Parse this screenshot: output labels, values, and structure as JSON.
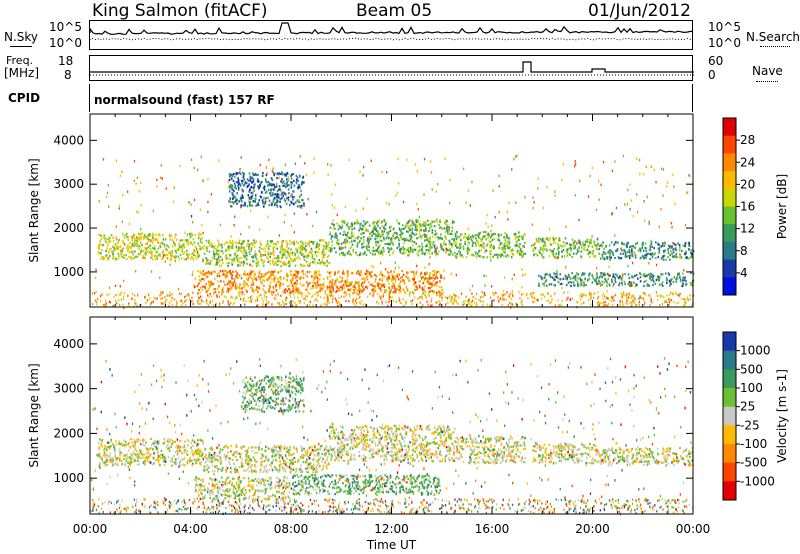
{
  "header": {
    "station": "King Salmon (fitACF)",
    "beam": "Beam 05",
    "date": "01/Jun/2012"
  },
  "strip": {
    "nsky_label": "N.Sky",
    "nsearch_label": "N.Search",
    "noise_ticks": [
      "10^5",
      "10^0"
    ],
    "freq_label": "Freq.",
    "freq_unit": "[MHz]",
    "freq_ticks": [
      "18",
      "8"
    ],
    "nave_label": "Nave",
    "nave_ticks": [
      "60",
      "0"
    ],
    "cpid_label": "CPID",
    "cpid_value": "normalsound (fast) 157 RF"
  },
  "chart_data": [
    {
      "type": "heatmap",
      "name": "power",
      "ylabel": "Slant Range [km]",
      "yticks": [
        1000,
        2000,
        3000,
        4000
      ],
      "ylim": [
        200,
        4600
      ],
      "xlim": [
        0,
        24
      ],
      "colorbar": {
        "label": "Power [dB]",
        "ticks": [
          "28",
          "24",
          "20",
          "16",
          "12",
          "8",
          "4"
        ],
        "colors": [
          "#e00000",
          "#ff4400",
          "#ff8800",
          "#ffbb00",
          "#c8d800",
          "#6ac030",
          "#3a9a5a",
          "#2a7a8a",
          "#1a3aaa",
          "#0010e0"
        ]
      },
      "bands": [
        {
          "t0": 0.3,
          "t1": 4.5,
          "r0": 1300,
          "r1": 1900,
          "level": 0.55
        },
        {
          "t0": 4.5,
          "t1": 9.5,
          "r0": 1150,
          "r1": 1750,
          "level": 0.5
        },
        {
          "t0": 9.5,
          "t1": 14.5,
          "r0": 1400,
          "r1": 2200,
          "level": 0.4
        },
        {
          "t0": 14.5,
          "t1": 17.3,
          "r0": 1350,
          "r1": 1950,
          "level": 0.45
        },
        {
          "t0": 17.6,
          "t1": 20.2,
          "r0": 1350,
          "r1": 1800,
          "level": 0.45
        },
        {
          "t0": 20.2,
          "t1": 24,
          "r0": 1300,
          "r1": 1700,
          "level": 0.3
        },
        {
          "t0": 4.1,
          "t1": 14.0,
          "r0": 550,
          "r1": 1050,
          "level": 0.75
        },
        {
          "t0": 5.5,
          "t1": 8.5,
          "r0": 2500,
          "r1": 3300,
          "level": 0.2
        },
        {
          "t0": 17.8,
          "t1": 24,
          "r0": 700,
          "r1": 1000,
          "level": 0.3
        }
      ]
    },
    {
      "type": "heatmap",
      "name": "velocity",
      "ylabel": "Slant Range [km]",
      "yticks": [
        1000,
        2000,
        3000,
        4000
      ],
      "ylim": [
        200,
        4600
      ],
      "xlim": [
        0,
        24
      ],
      "xticks": [
        "00:00",
        "04:00",
        "08:00",
        "12:00",
        "16:00",
        "20:00",
        "00:00"
      ],
      "xlabel": "Time UT",
      "colorbar": {
        "label": "Velocity [m s-1]",
        "ticks": [
          "1000",
          "500",
          "100",
          "25",
          "-25",
          "-100",
          "-500",
          "-1000"
        ],
        "colors": [
          "#1a3aaa",
          "#2a7a8a",
          "#3a9a5a",
          "#6ac030",
          "#c8c8c8",
          "#ffbb00",
          "#ff8800",
          "#ff4400",
          "#e00000"
        ]
      },
      "bands": [
        {
          "t0": 0.3,
          "t1": 4.5,
          "r0": 1300,
          "r1": 1900,
          "level": 0.5
        },
        {
          "t0": 4.5,
          "t1": 9.5,
          "r0": 1150,
          "r1": 1750,
          "level": 0.5
        },
        {
          "t0": 9.5,
          "t1": 14.5,
          "r0": 1400,
          "r1": 2200,
          "level": 0.5
        },
        {
          "t0": 14.5,
          "t1": 17.3,
          "r0": 1350,
          "r1": 1950,
          "level": 0.5
        },
        {
          "t0": 17.6,
          "t1": 20.2,
          "r0": 1350,
          "r1": 1800,
          "level": 0.5
        },
        {
          "t0": 20.2,
          "t1": 24,
          "r0": 1300,
          "r1": 1700,
          "level": 0.5
        },
        {
          "t0": 4.1,
          "t1": 8.0,
          "r0": 550,
          "r1": 1050,
          "level": 0.5
        },
        {
          "t0": 8.0,
          "t1": 14.0,
          "r0": 650,
          "r1": 1100,
          "level": 0.68
        },
        {
          "t0": 6.0,
          "t1": 8.5,
          "r0": 2500,
          "r1": 3300,
          "level": 0.68
        }
      ]
    }
  ]
}
